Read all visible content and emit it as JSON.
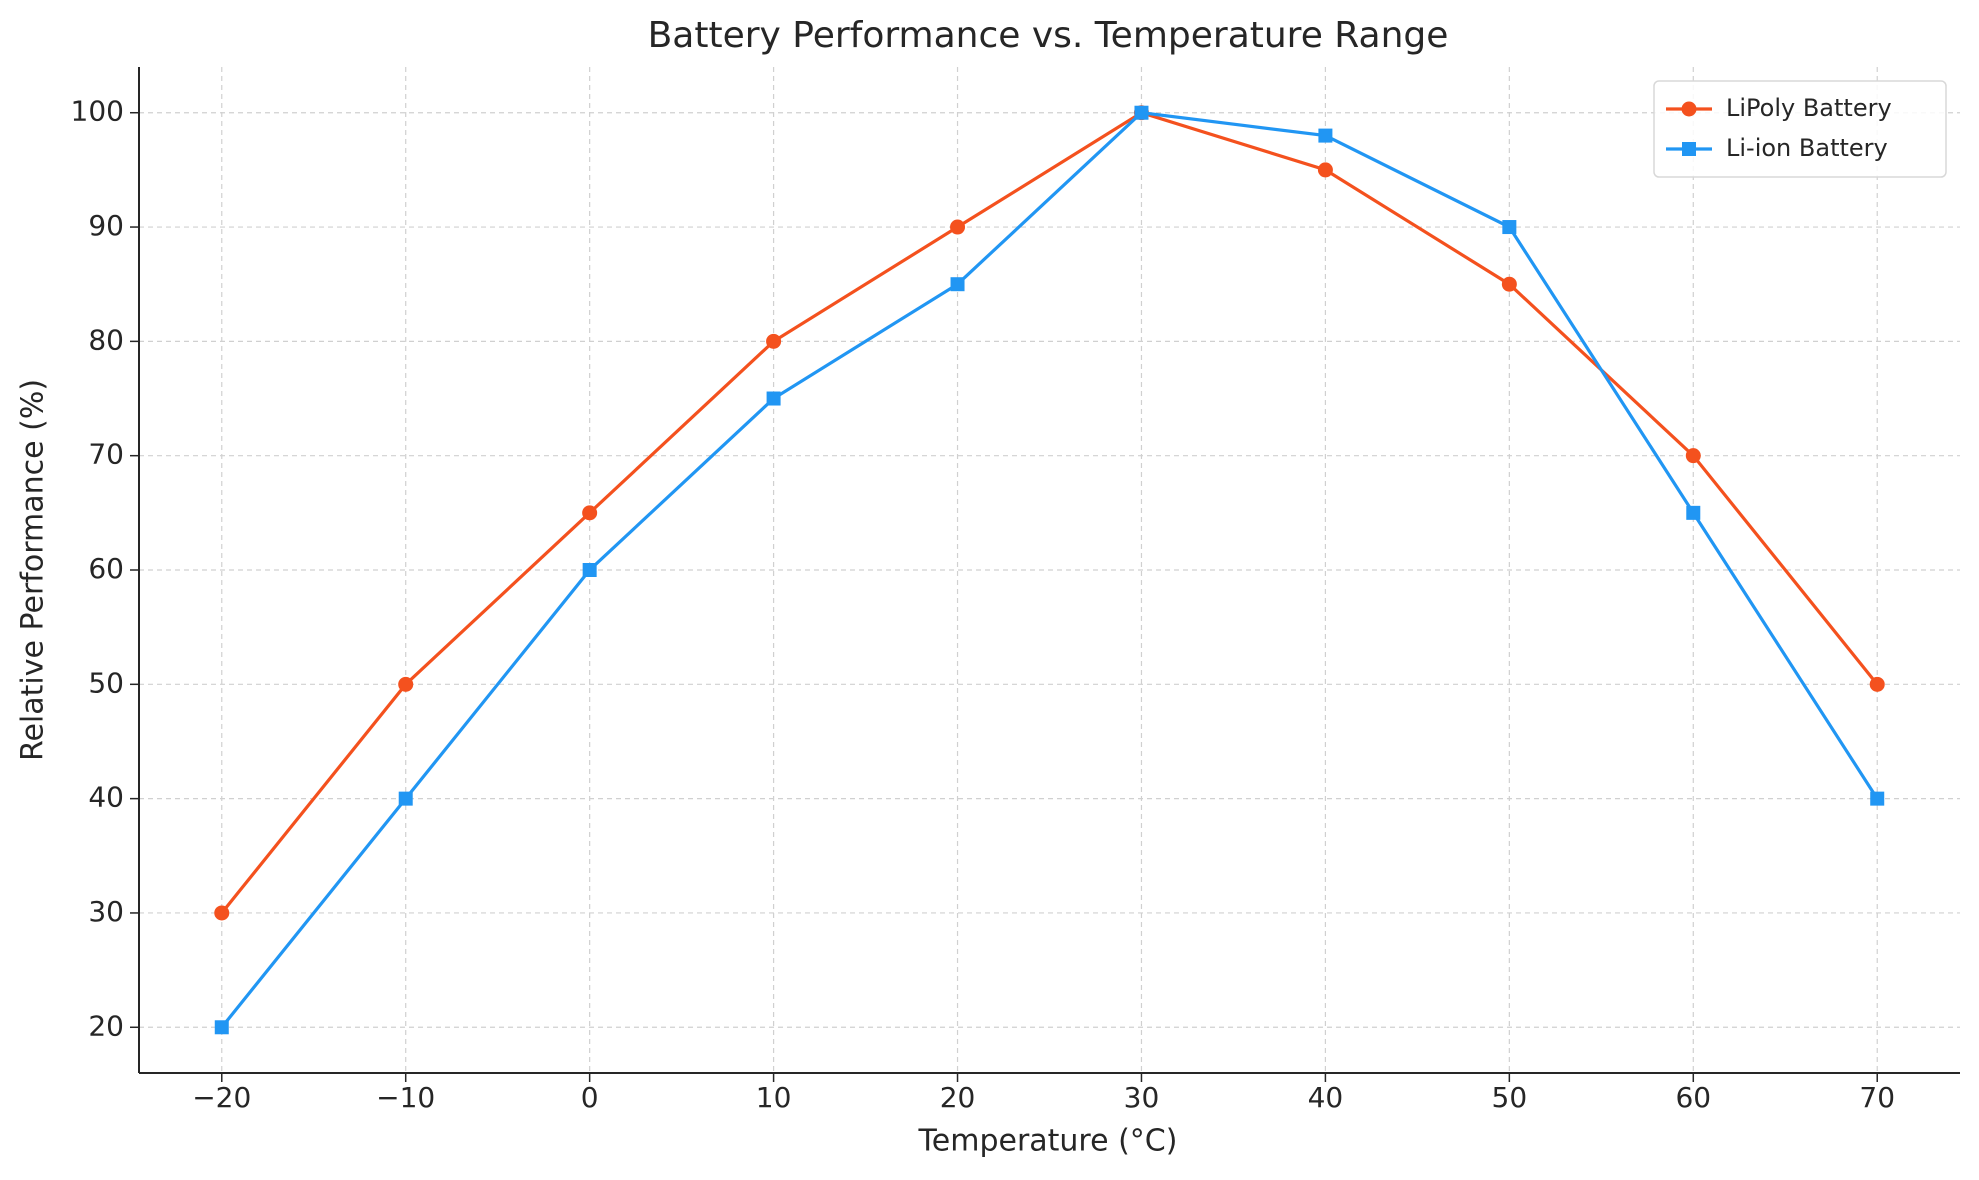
{
  "chart_data": {
    "type": "line",
    "title": "Battery Performance vs. Temperature Range",
    "x_label": "Temperature (°C)",
    "y_label": "Relative Performance (%)",
    "x": [
      -20,
      -10,
      0,
      10,
      20,
      30,
      40,
      50,
      60,
      70
    ],
    "series": [
      {
        "name": "LiPoly Battery",
        "color": "#f4511e",
        "marker": "circle",
        "values": [
          30,
          50,
          65,
          80,
          90,
          100,
          95,
          85,
          70,
          50
        ]
      },
      {
        "name": "Li-ion Battery",
        "color": "#2196f3",
        "marker": "square",
        "values": [
          20,
          40,
          60,
          75,
          85,
          100,
          98,
          90,
          65,
          40
        ]
      }
    ],
    "xlim": [
      -24.5,
      74.5
    ],
    "ylim": [
      16,
      104
    ],
    "xticks": [
      {
        "value": -20,
        "label": "−20"
      },
      {
        "value": -10,
        "label": "−10"
      },
      0,
      10,
      20,
      30,
      40,
      50,
      60,
      70
    ],
    "yticks": [
      20,
      30,
      40,
      50,
      60,
      70,
      80,
      90,
      100
    ],
    "grid": true,
    "legend": "upper right"
  }
}
